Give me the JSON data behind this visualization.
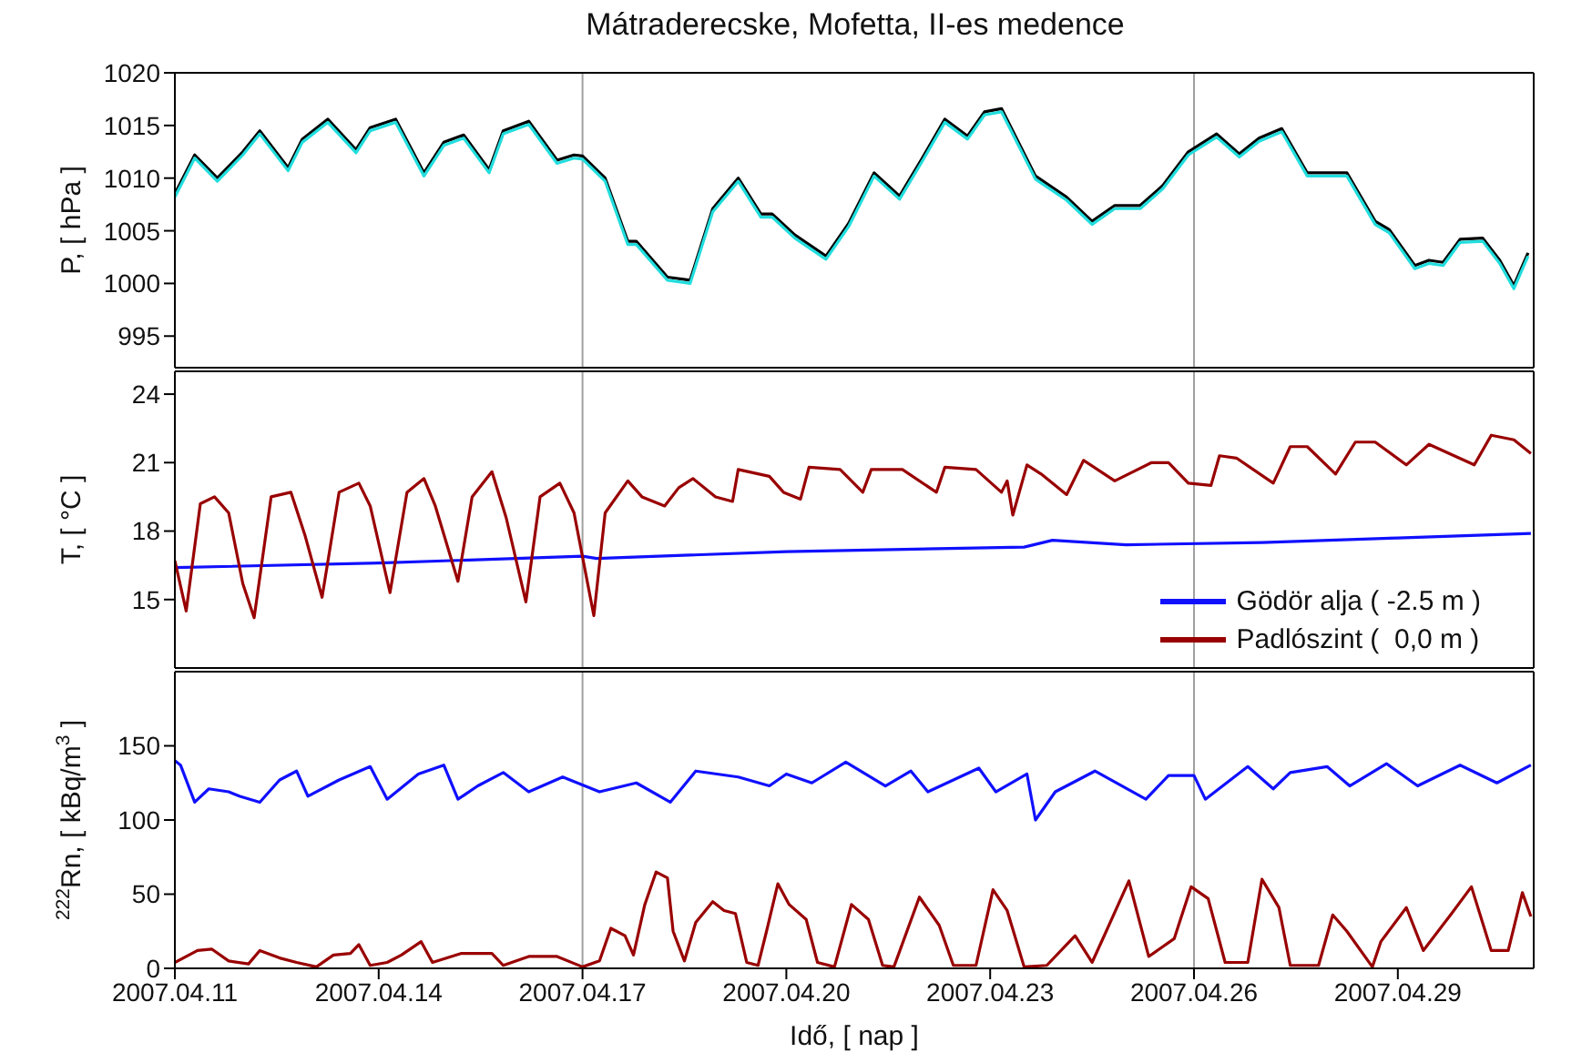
{
  "chart_data": [
    {
      "type": "line",
      "title": "Mátraderecske, Mofetta, II-es medence",
      "ylabel": "P, [ hPa ]",
      "tick_labels": "y",
      "xlim": [
        "2007-04-11",
        "2007-05-01"
      ],
      "xticks": [
        {
          "value": "2007-04-11",
          "label": null
        },
        {
          "value": "2007-04-14",
          "label": null
        },
        {
          "value": "2007-04-17",
          "label": null
        },
        {
          "value": "2007-04-20",
          "label": null
        },
        {
          "value": "2007-04-23",
          "label": null
        },
        {
          "value": "2007-04-26",
          "label": null
        },
        {
          "value": "2007-04-29",
          "label": null
        }
      ],
      "ylim": [
        992,
        1020
      ],
      "yticks": [
        995,
        1000,
        1005,
        1010,
        1015,
        1020
      ],
      "ref_lines": [
        {
          "axis": "x",
          "value": "2007-04-17",
          "color": "#a0a0a0"
        },
        {
          "axis": "x",
          "value": "2007-04-26",
          "color": "#a0a0a0"
        }
      ],
      "x": [
        "2007-04-11T00:00",
        "2007-04-11T07:00",
        "2007-04-11T15:00",
        "2007-04-12T00:00",
        "2007-04-12T06:00",
        "2007-04-12T16:00",
        "2007-04-12T21:00",
        "2007-04-13T06:00",
        "2007-04-13T16:00",
        "2007-04-13T21:00",
        "2007-04-14T06:00",
        "2007-04-14T16:00",
        "2007-04-14T23:00",
        "2007-04-15T06:00",
        "2007-04-15T15:00",
        "2007-04-15T20:00",
        "2007-04-16T05:00",
        "2007-04-16T15:00",
        "2007-04-16T21:00",
        "2007-04-17T00:00",
        "2007-04-17T08:00",
        "2007-04-17T16:00",
        "2007-04-17T19:00",
        "2007-04-18T06:00",
        "2007-04-18T14:00",
        "2007-04-18T22:00",
        "2007-04-19T07:00",
        "2007-04-19T15:00",
        "2007-04-19T19:00",
        "2007-04-20T03:00",
        "2007-04-20T14:00",
        "2007-04-20T22:00",
        "2007-04-21T07:00",
        "2007-04-21T16:00",
        "2007-04-22T00:00",
        "2007-04-22T08:00",
        "2007-04-22T16:00",
        "2007-04-22T22:00",
        "2007-04-23T04:00",
        "2007-04-23T16:00",
        "2007-04-24T03:00",
        "2007-04-24T12:00",
        "2007-04-24T20:00",
        "2007-04-25T05:00",
        "2007-04-25T13:00",
        "2007-04-25T22:00",
        "2007-04-26T08:00",
        "2007-04-26T16:00",
        "2007-04-26T23:00",
        "2007-04-27T07:00",
        "2007-04-27T16:00",
        "2007-04-27T23:00",
        "2007-04-28T06:00",
        "2007-04-28T16:00",
        "2007-04-28T21:00",
        "2007-04-29T06:00",
        "2007-04-29T11:00",
        "2007-04-29T16:00",
        "2007-04-29T22:00",
        "2007-04-30T06:00",
        "2007-04-30T12:00",
        "2007-04-30T17:00",
        "2007-04-30T22:00"
      ],
      "series": [
        {
          "color": "#000000",
          "values": [
            1008.5,
            1012.2,
            1010.0,
            1012.5,
            1014.5,
            1011.0,
            1013.7,
            1015.6,
            1012.7,
            1014.8,
            1015.6,
            1010.5,
            1013.4,
            1014.1,
            1010.8,
            1014.5,
            1015.4,
            1011.7,
            1012.2,
            1012.1,
            1010.0,
            1004.0,
            1004.0,
            1000.6,
            1000.3,
            1007.1,
            1010.0,
            1006.6,
            1006.6,
            1004.6,
            1002.6,
            1005.7,
            1010.5,
            1008.3,
            1011.9,
            1015.6,
            1014.0,
            1016.3,
            1016.6,
            1010.2,
            1008.2,
            1005.9,
            1007.4,
            1007.4,
            1009.3,
            1012.5,
            1014.2,
            1012.3,
            1013.8,
            1014.7,
            1010.5,
            1010.5,
            1010.5,
            1005.9,
            1005.1,
            1001.7,
            1002.2,
            1002.0,
            1004.2,
            1004.3,
            1002.2,
            999.8,
            1002.9
          ]
        },
        {
          "color": "#22dddd",
          "values": [
            1008.2,
            1011.9,
            1009.7,
            1012.2,
            1014.2,
            1010.7,
            1013.4,
            1015.3,
            1012.4,
            1014.5,
            1015.3,
            1010.2,
            1013.1,
            1013.8,
            1010.5,
            1014.2,
            1015.1,
            1011.4,
            1011.9,
            1011.8,
            1009.7,
            1003.7,
            1003.7,
            1000.3,
            1000.0,
            1006.8,
            1009.7,
            1006.3,
            1006.3,
            1004.3,
            1002.3,
            1005.4,
            1010.2,
            1008.0,
            1011.6,
            1015.3,
            1013.7,
            1016.0,
            1016.3,
            1009.9,
            1007.9,
            1005.6,
            1007.1,
            1007.1,
            1009.0,
            1012.2,
            1013.9,
            1012.0,
            1013.5,
            1014.4,
            1010.2,
            1010.2,
            1010.2,
            1005.6,
            1004.8,
            1001.4,
            1001.9,
            1001.7,
            1003.9,
            1004.0,
            1001.9,
            999.5,
            1002.6
          ]
        }
      ]
    },
    {
      "type": "line",
      "ylabel": "T, [ °C ]",
      "tick_labels": "y",
      "legend": "bottom right",
      "xlim": [
        "2007-04-11",
        "2007-05-01"
      ],
      "xticks": [
        {
          "value": "2007-04-11",
          "label": null
        },
        {
          "value": "2007-04-14",
          "label": null
        },
        {
          "value": "2007-04-17",
          "label": null
        },
        {
          "value": "2007-04-20",
          "label": null
        },
        {
          "value": "2007-04-23",
          "label": null
        },
        {
          "value": "2007-04-26",
          "label": null
        },
        {
          "value": "2007-04-29",
          "label": null
        }
      ],
      "ylim": [
        12,
        25
      ],
      "yticks": [
        15,
        18,
        21,
        24
      ],
      "ref_lines": [
        {
          "axis": "x",
          "value": "2007-04-17",
          "color": "#a0a0a0"
        },
        {
          "axis": "x",
          "value": "2007-04-26",
          "color": "#a0a0a0"
        }
      ],
      "series": [
        {
          "name": "Gödör alja ( -2.5 m )",
          "color": "#1010ff",
          "x": [
            "2007-04-11T00:00",
            "2007-04-14T00:00",
            "2007-04-17T00:00",
            "2007-04-17T05:00",
            "2007-04-20T00:00",
            "2007-04-23T12:00",
            "2007-04-23T22:00",
            "2007-04-25T00:00",
            "2007-04-27T00:00",
            "2007-04-29T00:00",
            "2007-04-30T23:00"
          ],
          "values": [
            16.4,
            16.6,
            16.9,
            16.8,
            17.1,
            17.3,
            17.6,
            17.4,
            17.5,
            17.7,
            17.9
          ]
        },
        {
          "name": "Padlószint (  0,0 m )",
          "color": "#990000",
          "x": [
            "2007-04-11T00:00",
            "2007-04-11T04:00",
            "2007-04-11T09:00",
            "2007-04-11T14:00",
            "2007-04-11T19:00",
            "2007-04-12T00:00",
            "2007-04-12T04:00",
            "2007-04-12T10:00",
            "2007-04-12T17:00",
            "2007-04-12T22:00",
            "2007-04-13T04:00",
            "2007-04-13T10:00",
            "2007-04-13T17:00",
            "2007-04-13T21:00",
            "2007-04-14T04:00",
            "2007-04-14T10:00",
            "2007-04-14T16:00",
            "2007-04-14T20:00",
            "2007-04-15T04:00",
            "2007-04-15T09:00",
            "2007-04-15T16:00",
            "2007-04-15T21:00",
            "2007-04-16T04:00",
            "2007-04-16T09:00",
            "2007-04-16T16:00",
            "2007-04-16T21:00",
            "2007-04-17T04:00",
            "2007-04-17T08:00",
            "2007-04-17T16:00",
            "2007-04-17T21:00",
            "2007-04-18T05:00",
            "2007-04-18T10:00",
            "2007-04-18T15:00",
            "2007-04-18T23:00",
            "2007-04-19T05:00",
            "2007-04-19T07:00",
            "2007-04-19T18:00",
            "2007-04-19T23:00",
            "2007-04-20T05:00",
            "2007-04-20T08:00",
            "2007-04-20T19:00",
            "2007-04-21T03:00",
            "2007-04-21T06:00",
            "2007-04-21T17:00",
            "2007-04-22T05:00",
            "2007-04-22T08:00",
            "2007-04-22T19:00",
            "2007-04-23T04:00",
            "2007-04-23T06:00",
            "2007-04-23T08:00",
            "2007-04-23T13:00",
            "2007-04-23T18:00",
            "2007-04-24T03:00",
            "2007-04-24T09:00",
            "2007-04-24T20:00",
            "2007-04-25T09:00",
            "2007-04-25T15:00",
            "2007-04-25T22:00",
            "2007-04-26T06:00",
            "2007-04-26T09:00",
            "2007-04-26T15:00",
            "2007-04-27T04:00",
            "2007-04-27T10:00",
            "2007-04-27T16:00",
            "2007-04-28T02:00",
            "2007-04-28T09:00",
            "2007-04-28T16:00",
            "2007-04-29T03:00",
            "2007-04-29T11:00",
            "2007-04-30T03:00",
            "2007-04-30T09:00",
            "2007-04-30T17:00",
            "2007-04-30T23:00"
          ],
          "values": [
            16.7,
            14.5,
            19.2,
            19.5,
            18.8,
            15.7,
            14.2,
            19.5,
            19.7,
            17.8,
            15.1,
            19.7,
            20.1,
            19.1,
            15.3,
            19.7,
            20.3,
            19.1,
            15.8,
            19.5,
            20.6,
            18.6,
            14.9,
            19.5,
            20.1,
            18.8,
            14.3,
            18.8,
            20.2,
            19.5,
            19.1,
            19.9,
            20.3,
            19.5,
            19.3,
            20.7,
            20.4,
            19.7,
            19.4,
            20.8,
            20.7,
            19.7,
            20.7,
            20.7,
            19.7,
            20.8,
            20.7,
            19.7,
            20.2,
            18.7,
            20.9,
            20.5,
            19.6,
            21.1,
            20.2,
            21.0,
            21.0,
            20.1,
            20.0,
            21.3,
            21.2,
            20.1,
            21.7,
            21.7,
            20.5,
            21.9,
            21.9,
            20.9,
            21.8,
            20.9,
            22.2,
            22.0,
            21.4
          ]
        }
      ]
    },
    {
      "type": "line",
      "ylabel": "$^{222}$Rn, [ kBq/m$^{3}$ ]",
      "xlabel": "Idő, [ nap ]",
      "xlim": [
        "2007-04-11",
        "2007-05-01"
      ],
      "xticks": [
        {
          "value": "2007-04-11",
          "label": "2007.04.11"
        },
        {
          "value": "2007-04-14",
          "label": "2007.04.14"
        },
        {
          "value": "2007-04-17",
          "label": "2007.04.17"
        },
        {
          "value": "2007-04-20",
          "label": "2007.04.20"
        },
        {
          "value": "2007-04-23",
          "label": "2007.04.23"
        },
        {
          "value": "2007-04-26",
          "label": "2007.04.26"
        },
        {
          "value": "2007-04-29",
          "label": "2007.04.29"
        }
      ],
      "ylim": [
        0,
        200
      ],
      "yticks": [
        0,
        50,
        100,
        150
      ],
      "ref_lines": [
        {
          "axis": "x",
          "value": "2007-04-17",
          "color": "#a0a0a0"
        },
        {
          "axis": "x",
          "value": "2007-04-26",
          "color": "#a0a0a0"
        }
      ],
      "series": [
        {
          "color": "#1010ff",
          "x": [
            "2007-04-11T00:00",
            "2007-04-11T02:00",
            "2007-04-11T07:00",
            "2007-04-11T12:00",
            "2007-04-11T19:00",
            "2007-04-11T23:00",
            "2007-04-12T06:00",
            "2007-04-12T13:00",
            "2007-04-12T19:00",
            "2007-04-12T23:00",
            "2007-04-13T10:00",
            "2007-04-13T21:00",
            "2007-04-14T03:00",
            "2007-04-14T14:00",
            "2007-04-14T23:00",
            "2007-04-15T04:00",
            "2007-04-15T11:00",
            "2007-04-15T20:00",
            "2007-04-16T05:00",
            "2007-04-16T17:00",
            "2007-04-17T06:00",
            "2007-04-17T19:00",
            "2007-04-18T07:00",
            "2007-04-18T16:00",
            "2007-04-19T07:00",
            "2007-04-19T18:00",
            "2007-04-20T00:00",
            "2007-04-20T09:00",
            "2007-04-20T21:00",
            "2007-04-21T11:00",
            "2007-04-21T20:00",
            "2007-04-22T02:00",
            "2007-04-22T20:00",
            "2007-04-23T02:00",
            "2007-04-23T13:00",
            "2007-04-23T16:00",
            "2007-04-23T23:00",
            "2007-04-24T13:00",
            "2007-04-25T07:00",
            "2007-04-25T15:00",
            "2007-04-26T00:00",
            "2007-04-26T04:00",
            "2007-04-26T19:00",
            "2007-04-27T04:00",
            "2007-04-27T10:00",
            "2007-04-27T23:00",
            "2007-04-28T07:00",
            "2007-04-28T20:00",
            "2007-04-29T07:00",
            "2007-04-29T22:00",
            "2007-04-30T11:00",
            "2007-04-30T23:00"
          ],
          "values": [
            140,
            137,
            112,
            121,
            119,
            116,
            112,
            127,
            133,
            116,
            127,
            136,
            114,
            131,
            137,
            114,
            123,
            132,
            119,
            129,
            119,
            125,
            112,
            133,
            129,
            123,
            131,
            125,
            139,
            123,
            133,
            119,
            135,
            119,
            131,
            100,
            119,
            133,
            114,
            130,
            130,
            114,
            136,
            121,
            132,
            136,
            123,
            138,
            123,
            137,
            125,
            137
          ]
        },
        {
          "color": "#990000",
          "x": [
            "2007-04-11T00:00",
            "2007-04-11T08:00",
            "2007-04-11T13:00",
            "2007-04-11T19:00",
            "2007-04-12T02:00",
            "2007-04-12T06:00",
            "2007-04-12T13:00",
            "2007-04-12T19:00",
            "2007-04-13T02:00",
            "2007-04-13T08:00",
            "2007-04-13T14:00",
            "2007-04-13T17:00",
            "2007-04-13T21:00",
            "2007-04-14T03:00",
            "2007-04-14T08:00",
            "2007-04-14T15:00",
            "2007-04-14T19:00",
            "2007-04-15T05:00",
            "2007-04-15T16:00",
            "2007-04-15T20:00",
            "2007-04-16T05:00",
            "2007-04-16T15:00",
            "2007-04-17T00:00",
            "2007-04-17T06:00",
            "2007-04-17T10:00",
            "2007-04-17T15:00",
            "2007-04-17T18:00",
            "2007-04-17T22:00",
            "2007-04-18T02:00",
            "2007-04-18T06:00",
            "2007-04-18T08:00",
            "2007-04-18T12:00",
            "2007-04-18T16:00",
            "2007-04-18T22:00",
            "2007-04-19T02:00",
            "2007-04-19T06:00",
            "2007-04-19T10:00",
            "2007-04-19T14:00",
            "2007-04-19T17:00",
            "2007-04-19T21:00",
            "2007-04-20T01:00",
            "2007-04-20T07:00",
            "2007-04-20T11:00",
            "2007-04-20T17:00",
            "2007-04-20T23:00",
            "2007-04-21T05:00",
            "2007-04-21T10:00",
            "2007-04-21T14:00",
            "2007-04-21T23:00",
            "2007-04-22T06:00",
            "2007-04-22T11:00",
            "2007-04-22T19:00",
            "2007-04-23T01:00",
            "2007-04-23T06:00",
            "2007-04-23T12:00",
            "2007-04-23T20:00",
            "2007-04-24T06:00",
            "2007-04-24T12:00",
            "2007-04-24T17:00",
            "2007-04-25T01:00",
            "2007-04-25T08:00",
            "2007-04-25T17:00",
            "2007-04-25T23:00",
            "2007-04-26T05:00",
            "2007-04-26T11:00",
            "2007-04-26T19:00",
            "2007-04-27T00:00",
            "2007-04-27T06:00",
            "2007-04-27T10:00",
            "2007-04-27T20:00",
            "2007-04-28T01:00",
            "2007-04-28T06:00",
            "2007-04-28T15:00",
            "2007-04-28T18:00",
            "2007-04-29T03:00",
            "2007-04-29T09:00",
            "2007-04-29T19:00",
            "2007-04-30T02:00",
            "2007-04-30T09:00",
            "2007-04-30T15:00",
            "2007-04-30T20:00",
            "2007-04-30T23:00"
          ],
          "values": [
            4,
            12,
            13,
            5,
            3,
            12,
            7,
            4,
            1,
            9,
            10,
            16,
            2,
            4,
            9,
            18,
            4,
            10,
            10,
            2,
            8,
            8,
            1,
            5,
            27,
            22,
            9,
            43,
            65,
            61,
            25,
            5,
            31,
            45,
            39,
            37,
            4,
            2,
            25,
            57,
            43,
            33,
            4,
            1,
            43,
            33,
            2,
            1,
            48,
            29,
            2,
            2,
            53,
            39,
            1,
            2,
            22,
            4,
            25,
            59,
            8,
            20,
            55,
            47,
            4,
            4,
            60,
            41,
            2,
            2,
            36,
            25,
            1,
            18,
            41,
            12,
            37,
            55,
            12,
            12,
            51,
            35
          ]
        }
      ]
    }
  ]
}
